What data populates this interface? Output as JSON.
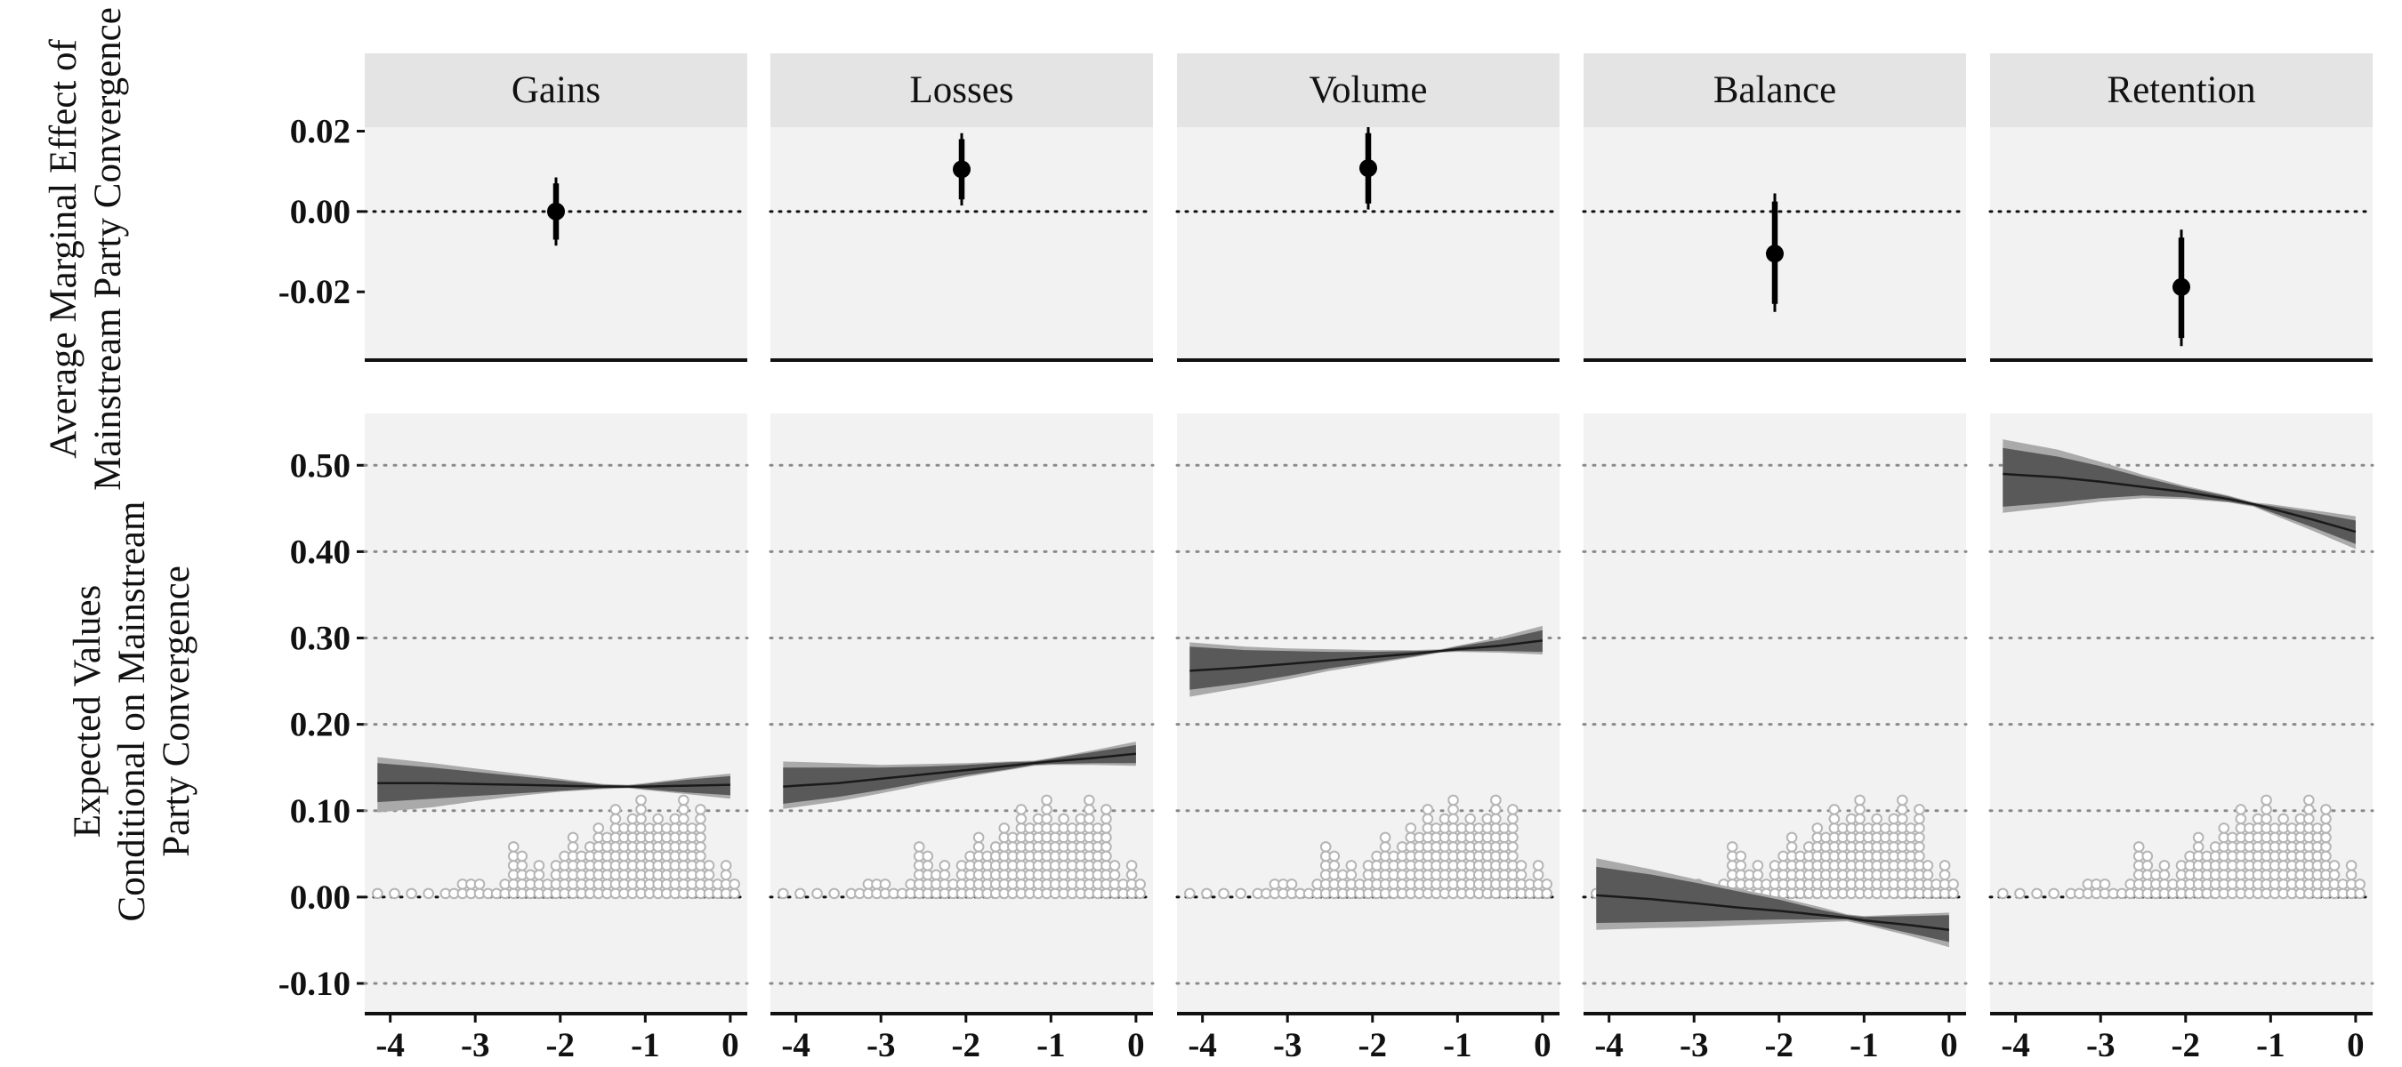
{
  "chart_data": {
    "type": "faceted-dot-and-line",
    "facets": [
      "Gains",
      "Losses",
      "Volume",
      "Balance",
      "Retention"
    ],
    "top_panel": {
      "ylabel_lines": [
        "Average Marginal Effect of",
        "Mainstream Party Convergence"
      ],
      "ylim": [
        -0.037,
        0.021
      ],
      "yticks": [
        0.02,
        0.0,
        -0.02
      ],
      "ytick_labels": [
        "0.02",
        "0.00",
        "-0.02"
      ],
      "x_position": -2.05,
      "reference_line": 0,
      "estimates": [
        {
          "facet": "Gains",
          "estimate": 0.0,
          "ci95": [
            -0.0085,
            0.0085
          ],
          "ci90": [
            -0.007,
            0.007
          ]
        },
        {
          "facet": "Losses",
          "estimate": 0.0105,
          "ci95": [
            0.0015,
            0.0195
          ],
          "ci90": [
            0.003,
            0.018
          ]
        },
        {
          "facet": "Volume",
          "estimate": 0.0108,
          "ci95": [
            0.0005,
            0.021
          ],
          "ci90": [
            0.002,
            0.0195
          ]
        },
        {
          "facet": "Balance",
          "estimate": -0.0105,
          "ci95": [
            -0.025,
            0.0045
          ],
          "ci90": [
            -0.023,
            0.0025
          ]
        },
        {
          "facet": "Retention",
          "estimate": -0.0188,
          "ci95": [
            -0.0335,
            -0.0045
          ],
          "ci90": [
            -0.0315,
            -0.0065
          ]
        }
      ]
    },
    "bottom_panel": {
      "ylabel_lines": [
        "Expected Values",
        "Conditional on Mainstream",
        "Party Convergence"
      ],
      "xlim": [
        -4.3,
        0.2
      ],
      "xticks": [
        -4,
        -3,
        -2,
        -1,
        0
      ],
      "xtick_labels": [
        "-4",
        "-3",
        "-2",
        "-1",
        "0"
      ],
      "ylim": [
        -0.135,
        0.56
      ],
      "yticks": [
        0.5,
        0.4,
        0.3,
        0.2,
        0.1,
        0.0,
        -0.1
      ],
      "ytick_labels": [
        "0.50",
        "0.40",
        "0.30",
        "0.20",
        "0.10",
        "0.00",
        "-0.10"
      ],
      "reference_line": 0,
      "x": [
        -4.15,
        -3.5,
        -3.0,
        -2.5,
        -2.0,
        -1.5,
        -1.2,
        -1.0,
        -0.5,
        0.0
      ],
      "series": [
        {
          "facet": "Gains",
          "fit": [
            0.132,
            0.132,
            0.131,
            0.13,
            0.129,
            0.128,
            0.128,
            0.128,
            0.129,
            0.13
          ],
          "ci95_low": [
            0.098,
            0.104,
            0.111,
            0.117,
            0.122,
            0.125,
            0.126,
            0.124,
            0.119,
            0.114
          ],
          "ci95_high": [
            0.162,
            0.155,
            0.149,
            0.143,
            0.137,
            0.131,
            0.13,
            0.132,
            0.138,
            0.143
          ],
          "ci90_low": [
            0.11,
            0.114,
            0.117,
            0.12,
            0.123,
            0.126,
            0.127,
            0.125,
            0.121,
            0.118
          ],
          "ci90_high": [
            0.155,
            0.15,
            0.145,
            0.14,
            0.135,
            0.13,
            0.129,
            0.131,
            0.136,
            0.14
          ]
        },
        {
          "facet": "Losses",
          "fit": [
            0.128,
            0.132,
            0.137,
            0.142,
            0.147,
            0.152,
            0.155,
            0.157,
            0.161,
            0.166
          ],
          "ci95_low": [
            0.102,
            0.111,
            0.12,
            0.13,
            0.139,
            0.147,
            0.152,
            0.153,
            0.153,
            0.152
          ],
          "ci95_high": [
            0.157,
            0.155,
            0.153,
            0.154,
            0.155,
            0.157,
            0.158,
            0.161,
            0.17,
            0.18
          ],
          "ci90_low": [
            0.108,
            0.116,
            0.124,
            0.133,
            0.141,
            0.148,
            0.153,
            0.154,
            0.155,
            0.155
          ],
          "ci90_high": [
            0.15,
            0.15,
            0.15,
            0.151,
            0.153,
            0.156,
            0.157,
            0.16,
            0.168,
            0.176
          ]
        },
        {
          "facet": "Volume",
          "fit": [
            0.262,
            0.266,
            0.27,
            0.274,
            0.278,
            0.282,
            0.285,
            0.287,
            0.291,
            0.297
          ],
          "ci95_low": [
            0.232,
            0.243,
            0.252,
            0.262,
            0.27,
            0.278,
            0.283,
            0.284,
            0.283,
            0.281
          ],
          "ci95_high": [
            0.295,
            0.29,
            0.288,
            0.287,
            0.286,
            0.286,
            0.287,
            0.291,
            0.301,
            0.314
          ],
          "ci90_low": [
            0.24,
            0.248,
            0.256,
            0.265,
            0.272,
            0.279,
            0.284,
            0.285,
            0.285,
            0.284
          ],
          "ci90_high": [
            0.29,
            0.286,
            0.285,
            0.284,
            0.284,
            0.285,
            0.286,
            0.29,
            0.298,
            0.309
          ]
        },
        {
          "facet": "Balance",
          "fit": [
            0.002,
            -0.0025,
            -0.007,
            -0.012,
            -0.016,
            -0.021,
            -0.024,
            -0.027,
            -0.032,
            -0.038
          ],
          "ci95_low": [
            -0.038,
            -0.036,
            -0.035,
            -0.033,
            -0.031,
            -0.029,
            -0.028,
            -0.032,
            -0.044,
            -0.058
          ],
          "ci95_high": [
            0.045,
            0.032,
            0.021,
            0.01,
            0.0,
            -0.012,
            -0.02,
            -0.022,
            -0.02,
            -0.018
          ],
          "ci90_low": [
            -0.03,
            -0.029,
            -0.028,
            -0.027,
            -0.026,
            -0.026,
            -0.026,
            -0.03,
            -0.041,
            -0.052
          ],
          "ci90_high": [
            0.035,
            0.026,
            0.017,
            0.007,
            -0.003,
            -0.015,
            -0.021,
            -0.023,
            -0.022,
            -0.021
          ]
        },
        {
          "facet": "Retention",
          "fit": [
            0.49,
            0.486,
            0.481,
            0.475,
            0.469,
            0.461,
            0.455,
            0.45,
            0.437,
            0.423
          ],
          "ci95_low": [
            0.445,
            0.452,
            0.458,
            0.462,
            0.461,
            0.457,
            0.452,
            0.444,
            0.424,
            0.403
          ],
          "ci95_high": [
            0.53,
            0.518,
            0.504,
            0.489,
            0.476,
            0.465,
            0.457,
            0.455,
            0.448,
            0.441
          ],
          "ci90_low": [
            0.452,
            0.457,
            0.462,
            0.465,
            0.463,
            0.458,
            0.453,
            0.446,
            0.428,
            0.409
          ],
          "ci90_high": [
            0.52,
            0.51,
            0.499,
            0.486,
            0.474,
            0.464,
            0.456,
            0.453,
            0.445,
            0.436
          ]
        }
      ],
      "dot_histogram": {
        "marker": "open-circle",
        "bins": [
          {
            "x": -4.15,
            "count": 1
          },
          {
            "x": -3.95,
            "count": 1
          },
          {
            "x": -3.75,
            "count": 1
          },
          {
            "x": -3.55,
            "count": 1
          },
          {
            "x": -3.35,
            "count": 1
          },
          {
            "x": -3.25,
            "count": 1
          },
          {
            "x": -3.15,
            "count": 2
          },
          {
            "x": -3.05,
            "count": 2
          },
          {
            "x": -2.95,
            "count": 2
          },
          {
            "x": -2.85,
            "count": 1
          },
          {
            "x": -2.75,
            "count": 1
          },
          {
            "x": -2.65,
            "count": 2
          },
          {
            "x": -2.55,
            "count": 6
          },
          {
            "x": -2.45,
            "count": 5
          },
          {
            "x": -2.35,
            "count": 3
          },
          {
            "x": -2.25,
            "count": 4
          },
          {
            "x": -2.15,
            "count": 2
          },
          {
            "x": -2.05,
            "count": 4
          },
          {
            "x": -1.95,
            "count": 5
          },
          {
            "x": -1.85,
            "count": 7
          },
          {
            "x": -1.75,
            "count": 5
          },
          {
            "x": -1.65,
            "count": 6
          },
          {
            "x": -1.55,
            "count": 8
          },
          {
            "x": -1.45,
            "count": 7
          },
          {
            "x": -1.35,
            "count": 10
          },
          {
            "x": -1.25,
            "count": 8
          },
          {
            "x": -1.15,
            "count": 9
          },
          {
            "x": -1.05,
            "count": 11
          },
          {
            "x": -0.95,
            "count": 8
          },
          {
            "x": -0.85,
            "count": 9
          },
          {
            "x": -0.75,
            "count": 8
          },
          {
            "x": -0.65,
            "count": 9
          },
          {
            "x": -0.55,
            "count": 11
          },
          {
            "x": -0.45,
            "count": 8
          },
          {
            "x": -0.35,
            "count": 10
          },
          {
            "x": -0.25,
            "count": 4
          },
          {
            "x": -0.15,
            "count": 2
          },
          {
            "x": -0.05,
            "count": 4
          },
          {
            "x": 0.05,
            "count": 2
          }
        ]
      }
    }
  }
}
